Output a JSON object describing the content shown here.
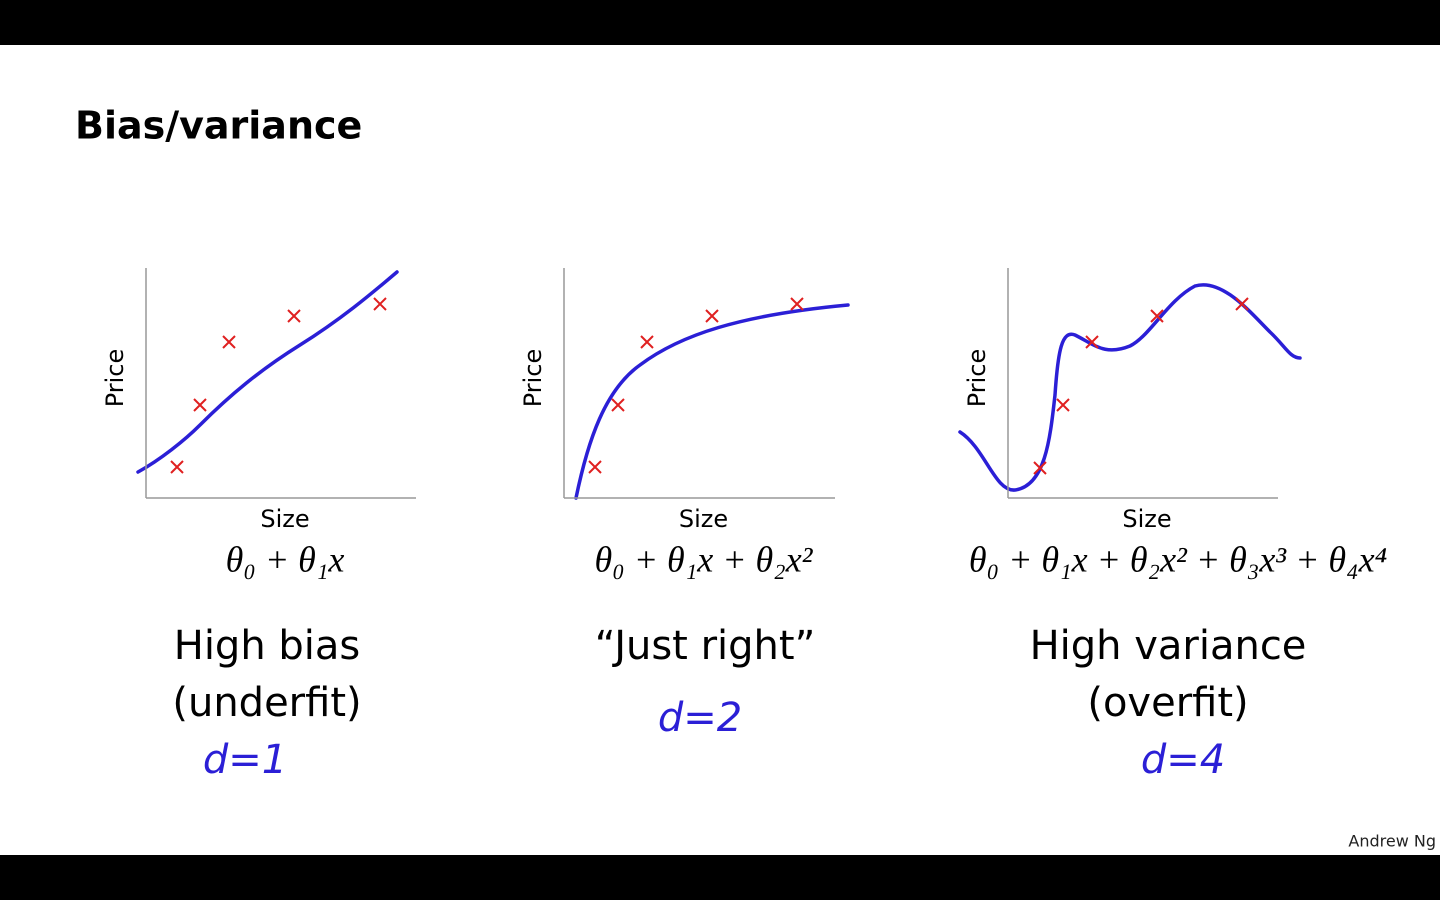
{
  "slide": {
    "title": "Bias/variance",
    "panels": [
      {
        "y_axis_label": "Price",
        "x_axis_label": "Size",
        "formula": "θ₀ + θ₁x",
        "caption": [
          "High bias",
          "(underfit)"
        ],
        "annotation": "d=1"
      },
      {
        "y_axis_label": "Price",
        "x_axis_label": "Size",
        "formula": "θ₀ + θ₁x + θ₂x²",
        "caption": [
          "“Just right”"
        ],
        "annotation": "d=2"
      },
      {
        "y_axis_label": "Price",
        "x_axis_label": "Size",
        "formula": "θ₀ + θ₁x + θ₂x² + θ₃x³ + θ₄x⁴",
        "caption": [
          "High variance",
          "(overfit)"
        ],
        "annotation": "d=4"
      }
    ],
    "footer": "Andrew Ng"
  }
}
